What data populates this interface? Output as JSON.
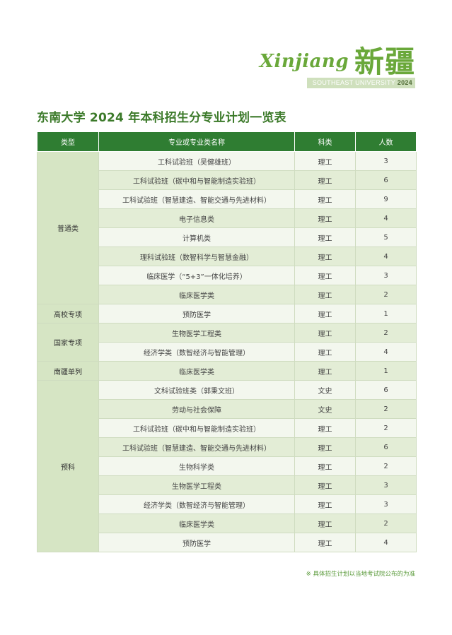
{
  "brand": {
    "latin": "Xinjiang",
    "chinese": "新疆",
    "sub_prefix": "SOUTHEAST UNIVERSITY",
    "sub_year": "2024"
  },
  "title": "东南大学 2024 年本科招生分专业计划一览表",
  "table": {
    "headers": [
      "类型",
      "专业或专业类名称",
      "科类",
      "人数"
    ],
    "groups": [
      {
        "category": "普通类",
        "rows": [
          {
            "major": "工科试验班（吴健雄班）",
            "track": "理工",
            "count": "3"
          },
          {
            "major": "工科试验班（碳中和与智能制造实验班）",
            "track": "理工",
            "count": "6"
          },
          {
            "major": "工科试验班（智慧建造、智能交通与先进材料）",
            "track": "理工",
            "count": "9"
          },
          {
            "major": "电子信息类",
            "track": "理工",
            "count": "4"
          },
          {
            "major": "计算机类",
            "track": "理工",
            "count": "5"
          },
          {
            "major": "理科试验班（数智科学与智慧金融）",
            "track": "理工",
            "count": "4"
          },
          {
            "major": "临床医学（“5+3”一体化培养）",
            "track": "理工",
            "count": "3"
          },
          {
            "major": "临床医学类",
            "track": "理工",
            "count": "2"
          }
        ]
      },
      {
        "category": "高校专项",
        "rows": [
          {
            "major": "预防医学",
            "track": "理工",
            "count": "1"
          }
        ]
      },
      {
        "category": "国家专项",
        "rows": [
          {
            "major": "生物医学工程类",
            "track": "理工",
            "count": "2"
          },
          {
            "major": "经济学类（数智经济与智能管理）",
            "track": "理工",
            "count": "4"
          }
        ]
      },
      {
        "category": "南疆单列",
        "rows": [
          {
            "major": "临床医学类",
            "track": "理工",
            "count": "1"
          }
        ]
      },
      {
        "category": "预科",
        "rows": [
          {
            "major": "文科试验班类（郭秉文班）",
            "track": "文史",
            "count": "6"
          },
          {
            "major": "劳动与社会保障",
            "track": "文史",
            "count": "2"
          },
          {
            "major": "工科试验班（碳中和与智能制造实验班）",
            "track": "理工",
            "count": "2"
          },
          {
            "major": "工科试验班（智慧建造、智能交通与先进材料）",
            "track": "理工",
            "count": "6"
          },
          {
            "major": "生物科学类",
            "track": "理工",
            "count": "2"
          },
          {
            "major": "生物医学工程类",
            "track": "理工",
            "count": "3"
          },
          {
            "major": "经济学类（数智经济与智能管理）",
            "track": "理工",
            "count": "3"
          },
          {
            "major": "临床医学类",
            "track": "理工",
            "count": "2"
          },
          {
            "major": "预防医学",
            "track": "理工",
            "count": "4"
          }
        ]
      }
    ]
  },
  "note": "※ 具体招生计划以当地考试院公布的为准"
}
